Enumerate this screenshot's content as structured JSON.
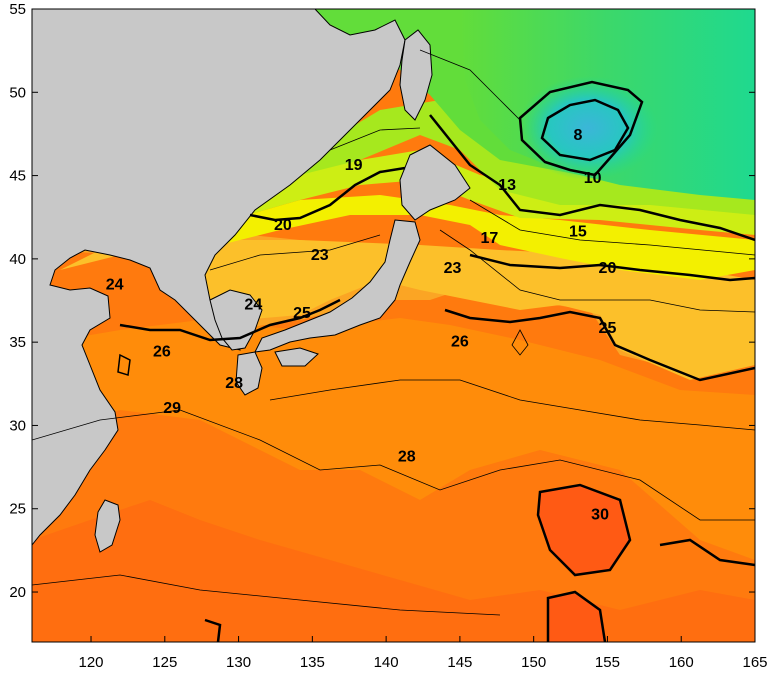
{
  "chart_data": {
    "type": "heatmap",
    "title": "",
    "xlabel": "",
    "ylabel": "",
    "xlim": [
      116,
      165
    ],
    "ylim": [
      17,
      55
    ],
    "x_ticks": [
      {
        "value": 120,
        "label": "120"
      },
      {
        "value": 125,
        "label": "125"
      },
      {
        "value": 130,
        "label": "130"
      },
      {
        "value": 135,
        "label": "135"
      },
      {
        "value": 140,
        "label": "140"
      },
      {
        "value": 145,
        "label": "145"
      },
      {
        "value": 150,
        "label": "150"
      },
      {
        "value": 155,
        "label": "155"
      },
      {
        "value": 160,
        "label": "160"
      },
      {
        "value": 165,
        "label": "165"
      }
    ],
    "y_ticks": [
      {
        "value": 20,
        "label": "20"
      },
      {
        "value": 25,
        "label": "25"
      },
      {
        "value": 30,
        "label": "30"
      },
      {
        "value": 35,
        "label": "35"
      },
      {
        "value": 40,
        "label": "40"
      },
      {
        "value": 45,
        "label": "45"
      },
      {
        "value": 50,
        "label": "50"
      },
      {
        "value": 55,
        "label": "55"
      }
    ],
    "land_color": "#c8c8c8",
    "color_scale": [
      {
        "t": 8,
        "color": "#3bb6d8"
      },
      {
        "t": 10,
        "color": "#27c7c0"
      },
      {
        "t": 13,
        "color": "#1fd98f"
      },
      {
        "t": 15,
        "color": "#3cd86a"
      },
      {
        "t": 17,
        "color": "#62dd3a"
      },
      {
        "t": 19,
        "color": "#a6e81e"
      },
      {
        "t": 20,
        "color": "#cdee14"
      },
      {
        "t": 23,
        "color": "#f3f000"
      },
      {
        "t": 24,
        "color": "#ffd800"
      },
      {
        "t": 25,
        "color": "#fcc02a"
      },
      {
        "t": 26,
        "color": "#fba524"
      },
      {
        "t": 28,
        "color": "#ff8c0a"
      },
      {
        "t": 29,
        "color": "#ff6e10"
      },
      {
        "t": 30,
        "color": "#ff5a14"
      }
    ],
    "contour_labels": [
      {
        "text": "8",
        "lon": 153.0,
        "lat": 47.4
      },
      {
        "text": "10",
        "lon": 154.0,
        "lat": 44.8
      },
      {
        "text": "13",
        "lon": 148.2,
        "lat": 44.4
      },
      {
        "text": "15",
        "lon": 153.0,
        "lat": 41.6
      },
      {
        "text": "17",
        "lon": 147.0,
        "lat": 41.2
      },
      {
        "text": "19",
        "lon": 137.8,
        "lat": 45.6
      },
      {
        "text": "20",
        "lon": 133.0,
        "lat": 42.0
      },
      {
        "text": "20",
        "lon": 155.0,
        "lat": 39.4
      },
      {
        "text": "23",
        "lon": 135.5,
        "lat": 40.2
      },
      {
        "text": "23",
        "lon": 144.5,
        "lat": 39.4
      },
      {
        "text": "24",
        "lon": 121.6,
        "lat": 38.4
      },
      {
        "text": "24",
        "lon": 131.0,
        "lat": 37.2
      },
      {
        "text": "25",
        "lon": 134.3,
        "lat": 36.7
      },
      {
        "text": "25",
        "lon": 155.0,
        "lat": 35.8
      },
      {
        "text": "26",
        "lon": 124.8,
        "lat": 34.4
      },
      {
        "text": "26",
        "lon": 145.0,
        "lat": 35.0
      },
      {
        "text": "28",
        "lon": 129.7,
        "lat": 32.5
      },
      {
        "text": "28",
        "lon": 141.4,
        "lat": 28.1
      },
      {
        "text": "29",
        "lon": 125.5,
        "lat": 31.0
      },
      {
        "text": "30",
        "lon": 154.5,
        "lat": 24.6
      }
    ]
  }
}
